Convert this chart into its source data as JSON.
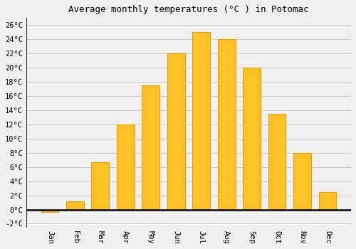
{
  "title": "Average monthly temperatures (°C ) in Potomac",
  "months": [
    "Jan",
    "Feb",
    "Mar",
    "Apr",
    "May",
    "Jun",
    "Jul",
    "Aug",
    "Sep",
    "Oct",
    "Nov",
    "Dec"
  ],
  "values": [
    -0.3,
    1.2,
    6.7,
    12.0,
    17.5,
    22.0,
    25.0,
    24.0,
    20.0,
    13.5,
    8.0,
    2.5
  ],
  "bar_color": "#FFC125",
  "bar_edge_color": "#E8A000",
  "background_color": "#F0F0F0",
  "grid_color": "#CCCCCC",
  "ylim": [
    -2.5,
    27
  ],
  "yticks": [
    -2,
    0,
    2,
    4,
    6,
    8,
    10,
    12,
    14,
    16,
    18,
    20,
    22,
    24,
    26
  ],
  "ytick_labels": [
    "-2°C",
    "0°C",
    "2°C",
    "4°C",
    "6°C",
    "8°C",
    "10°C",
    "12°C",
    "14°C",
    "16°C",
    "18°C",
    "20°C",
    "22°C",
    "24°C",
    "26°C"
  ],
  "title_fontsize": 9,
  "tick_fontsize": 7.5,
  "bar_width": 0.7,
  "left_spine_color": "#333333"
}
